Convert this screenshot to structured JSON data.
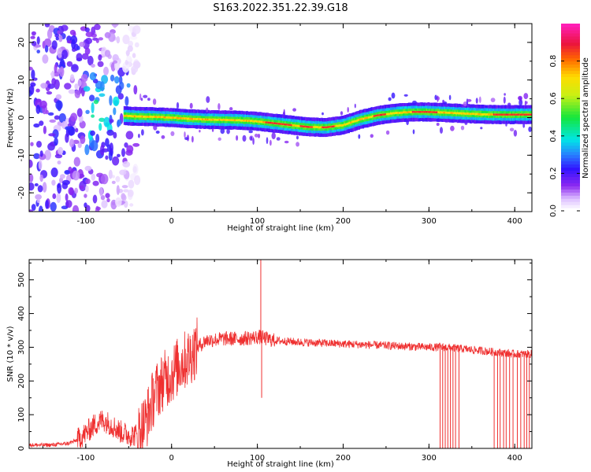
{
  "title": "S163.2022.351.22.39.G18",
  "colors": {
    "signal": "#ef3030",
    "background": "#ffffff"
  },
  "chart_data": [
    {
      "type": "heatmap",
      "xlabel": "Height of straight line (km)",
      "ylabel": "Frequency (Hz)",
      "xlim": [
        -166,
        420
      ],
      "ylim": [
        -25,
        25
      ],
      "xticks": [
        -100,
        0,
        100,
        200,
        300,
        400
      ],
      "yticks": [
        -20,
        -10,
        0,
        10,
        20
      ],
      "grid": false,
      "colorbar": {
        "label": "Normalized spectral amplitude",
        "range": [
          0,
          1
        ],
        "ticks": [
          "0.0",
          "0.2",
          "0.4",
          "0.6",
          "0.8"
        ],
        "colormap": "rainbow (white → violet → blue → cyan → green → yellow → red → magenta)"
      },
      "ridge": {
        "description": "dominant frequency of spectral peak vs height",
        "x": [
          -55,
          -40,
          -20,
          0,
          20,
          40,
          60,
          80,
          100,
          120,
          140,
          160,
          180,
          200,
          220,
          240,
          260,
          280,
          300,
          320,
          340,
          360,
          380,
          400,
          420
        ],
        "y": [
          0.5,
          0.3,
          0.2,
          0,
          -0.3,
          -0.5,
          -0.6,
          -0.7,
          -1.0,
          -1.5,
          -2.0,
          -2.5,
          -2.6,
          -2.0,
          -0.5,
          0.6,
          1.2,
          1.5,
          1.5,
          1.3,
          1.1,
          0.9,
          0.8,
          0.8,
          0.8
        ],
        "peak_amplitude_x_ranges": [
          [
            110,
            140
          ],
          [
            150,
            165
          ],
          [
            175,
            190
          ],
          [
            235,
            250
          ],
          [
            280,
            310
          ],
          [
            375,
            420
          ]
        ]
      },
      "noise_region": {
        "x_range": [
          -166,
          -40
        ],
        "y_range": [
          -25,
          25
        ],
        "amplitude": "low (violet/blue)"
      }
    },
    {
      "type": "line",
      "xlabel": "Height of straight line (km)",
      "ylabel": "SNR (10 * v/v)",
      "xlim": [
        -166,
        420
      ],
      "ylim": [
        0,
        560
      ],
      "xticks": [
        -100,
        0,
        100,
        200,
        300,
        400
      ],
      "yticks": [
        0,
        100,
        200,
        300,
        400,
        500
      ],
      "grid": false,
      "series": [
        {
          "x": [
            -166,
            -140,
            -120,
            -110,
            -100,
            -90,
            -80,
            -70,
            -60,
            -50,
            -40,
            -30,
            -20,
            -10,
            0,
            10,
            20,
            30,
            40,
            60,
            80,
            100,
            105,
            110,
            120,
            150,
            200,
            250,
            300,
            320,
            340,
            360,
            380,
            400,
            420
          ],
          "y": [
            10,
            10,
            15,
            25,
            45,
            70,
            85,
            70,
            50,
            40,
            40,
            80,
            160,
            200,
            220,
            250,
            270,
            300,
            320,
            325,
            325,
            330,
            330,
            325,
            320,
            315,
            310,
            305,
            300,
            300,
            295,
            290,
            285,
            280,
            280
          ]
        }
      ],
      "spikes": [
        {
          "x": 104,
          "y": 560
        },
        {
          "x": 105,
          "y": 150
        }
      ],
      "dropouts_x": [
        313,
        316,
        319,
        322,
        325,
        328,
        331,
        335,
        376,
        380,
        383,
        387,
        390,
        394,
        398,
        403,
        407,
        411,
        414,
        417
      ]
    }
  ]
}
